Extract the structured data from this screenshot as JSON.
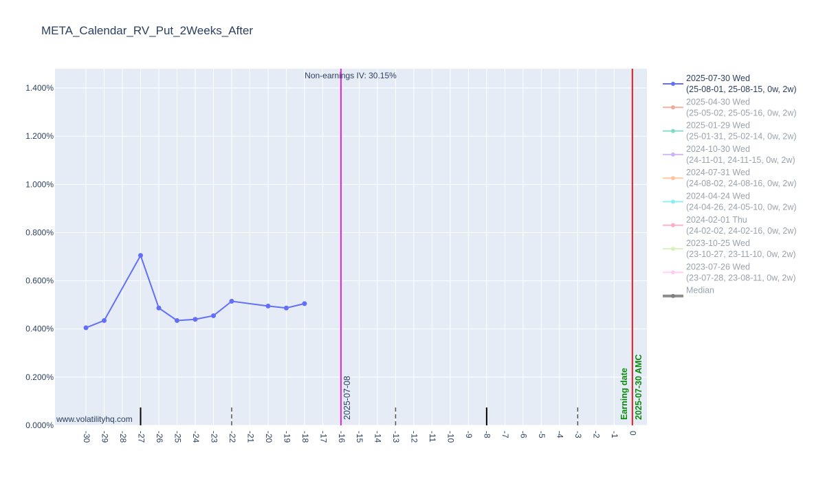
{
  "chart_data": {
    "type": "line",
    "title": "META_Calendar_RV_Put_2Weeks_After",
    "xlabel": "",
    "ylabel": "",
    "x_ticks": [
      -30,
      -29,
      -28,
      -27,
      -26,
      -25,
      -24,
      -23,
      -22,
      -21,
      -20,
      -19,
      -18,
      -17,
      -16,
      -15,
      -14,
      -13,
      -12,
      -11,
      -10,
      -9,
      -8,
      -7,
      -6,
      -5,
      -4,
      -3,
      -2,
      -1,
      0
    ],
    "x_tick_labels": [
      "-30",
      "-29",
      "-28",
      "-27",
      "-26",
      "-25",
      "-24",
      "-23",
      "-22",
      "-21",
      "-20",
      "-19",
      "-18",
      "-17",
      "-16",
      "-15",
      "-14",
      "-13",
      "-12",
      "-11",
      "-10",
      "-9",
      "-8",
      "-7",
      "-6",
      "-5",
      "-4",
      "-3",
      "-2",
      "-1",
      "0"
    ],
    "xlim": [
      -31.7,
      0.8
    ],
    "ylim": [
      0,
      1.48
    ],
    "y_ticks": [
      0,
      0.2,
      0.4,
      0.6,
      0.8,
      1.0,
      1.2,
      1.4
    ],
    "y_tick_labels": [
      "0.000%",
      "0.200%",
      "0.400%",
      "0.600%",
      "0.800%",
      "1.000%",
      "1.200%",
      "1.400%"
    ],
    "grid": true,
    "legend_position": "right",
    "series": [
      {
        "name": "2025-07-30 Wed (25-08-01, 25-08-15, 0w, 2w)",
        "color": "#636efa",
        "x": [
          -30,
          -29,
          -27,
          -26,
          -25,
          -24,
          -23,
          -22,
          -20,
          -19,
          -18
        ],
        "y": [
          0.405,
          0.435,
          0.705,
          0.487,
          0.435,
          0.44,
          0.455,
          0.515,
          0.495,
          0.487,
          0.505
        ]
      }
    ],
    "legend": [
      {
        "line1": "2025-07-30 Wed",
        "line2": "(25-08-01, 25-08-15, 0w, 2w)",
        "color": "#636efa",
        "active": true,
        "width": 2
      },
      {
        "line1": "2025-04-30 Wed",
        "line2": "(25-05-02, 25-05-16, 0w, 2w)",
        "color": "#f2a89b",
        "active": false,
        "width": 2
      },
      {
        "line1": "2025-01-29 Wed",
        "line2": "(25-01-31, 25-02-14, 0w, 2w)",
        "color": "#7fdcc8",
        "active": false,
        "width": 2
      },
      {
        "line1": "2024-10-30 Wed",
        "line2": "(24-11-01, 24-11-15, 0w, 2w)",
        "color": "#cdb4f7",
        "active": false,
        "width": 2
      },
      {
        "line1": "2024-07-31 Wed",
        "line2": "(24-08-02, 24-08-16, 0w, 2w)",
        "color": "#ffc59a",
        "active": false,
        "width": 2
      },
      {
        "line1": "2024-04-24 Wed",
        "line2": "(24-04-26, 24-05-10, 0w, 2w)",
        "color": "#84eef4",
        "active": false,
        "width": 2
      },
      {
        "line1": "2024-02-01 Thu",
        "line2": "(24-02-02, 24-02-16, 0w, 2w)",
        "color": "#ffabc6",
        "active": false,
        "width": 2
      },
      {
        "line1": "2023-10-25 Wed",
        "line2": "(23-10-27, 23-11-10, 0w, 2w)",
        "color": "#d6f2b7",
        "active": false,
        "width": 2
      },
      {
        "line1": "2023-07-26 Wed",
        "line2": "(23-07-28, 23-08-11, 0w, 2w)",
        "color": "#ffccf5",
        "active": false,
        "width": 2
      },
      {
        "line1": "Median",
        "line2": "",
        "color": "#808080",
        "active": false,
        "width": 4
      }
    ],
    "vertical_lines": [
      {
        "x": -16,
        "color": "#e61ee6",
        "label": "2025-07-08",
        "label_color": "#2a3f5f",
        "bold": false
      },
      {
        "x": 0,
        "color": "#e8191e",
        "label": "2025-07-30 AMC",
        "label_color": "#0a8a0a",
        "bold": true
      }
    ],
    "earning_label": {
      "text": "Earning date",
      "color": "#0a8a0a"
    },
    "annotation_top": "Non-earnings IV: 30.15%",
    "watermark": "www.volatilityhq.com",
    "tick_marks": [
      {
        "x": -27,
        "style": "solid",
        "color": "#000000"
      },
      {
        "x": -22,
        "style": "dashed",
        "color": "#555555"
      },
      {
        "x": -13,
        "style": "dashed",
        "color": "#555555"
      },
      {
        "x": -8,
        "style": "solid",
        "color": "#000000"
      },
      {
        "x": -3,
        "style": "dashed",
        "color": "#555555"
      }
    ],
    "colors": {
      "plot_bg": "#e5ecf6",
      "grid": "#ffffff",
      "text": "#2a3f5f",
      "legend_inactive_text": "#9aa3ad"
    }
  }
}
